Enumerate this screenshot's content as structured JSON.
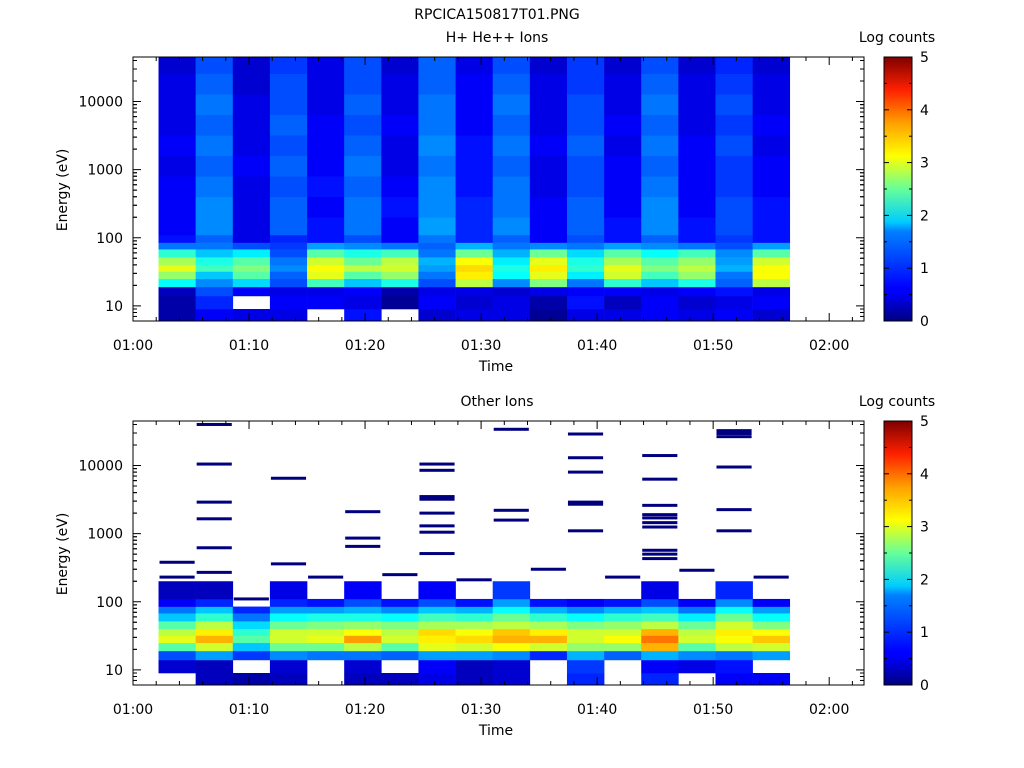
{
  "figure_title": "RPCICA150817T01.PNG",
  "chart_data": [
    {
      "type": "heatmap",
      "title": "H+ He++ Ions",
      "xlabel": "Time",
      "ylabel": "Energy (eV)",
      "colorbar_label": "Log counts",
      "colorbar_ticks": [
        "0",
        "1",
        "2",
        "3",
        "4",
        "5"
      ],
      "colorbar_range": [
        0,
        5
      ],
      "xlim": [
        "01:00",
        "02:03"
      ],
      "xtick_labels": [
        "01:00",
        "01:10",
        "01:20",
        "01:30",
        "01:40",
        "01:50",
        "02:00"
      ],
      "xtick_minutes": [
        0,
        10,
        20,
        30,
        40,
        50,
        60
      ],
      "ylim": [
        6,
        45000
      ],
      "y_scale": "log",
      "ytick_labels": [
        "10",
        "100",
        "1000",
        "10000"
      ],
      "ytick_values": [
        10,
        100,
        1000,
        10000
      ],
      "time_bins_minutes": [
        2.2,
        5.4,
        8.6,
        11.8,
        15.0,
        18.2,
        21.4,
        24.6,
        27.8,
        31.0,
        34.2,
        37.4,
        40.6,
        43.8,
        47.0,
        50.2,
        53.4,
        56.6
      ],
      "energy_bin_edges_ev": [
        6,
        9,
        14,
        19,
        25,
        32,
        40,
        52,
        68,
        85,
        110,
        200,
        400,
        800,
        1600,
        3200,
        6400,
        12800,
        25600,
        45000
      ],
      "log_counts_bottom_to_top": [
        [
          0.2,
          0.6,
          0.5,
          0.5,
          null,
          0.7,
          null,
          0.4,
          0.5,
          0.5,
          0.1,
          0.5,
          0.5,
          0.6,
          0.5,
          0.6,
          0.4
        ],
        [
          0.2,
          0.8,
          null,
          0.6,
          0.6,
          0.5,
          0.1,
          0.6,
          0.4,
          0.5,
          0.2,
          0.7,
          0.3,
          0.6,
          0.4,
          0.5,
          0.6
        ],
        [
          0.3,
          1.0,
          0.6,
          0.5,
          0.5,
          0.6,
          0.2,
          0.5,
          0.5,
          0.4,
          0.5,
          0.6,
          0.6,
          0.5,
          0.6,
          0.7,
          0.5
        ],
        [
          1.9,
          1.3,
          1.7,
          1.0,
          2.2,
          1.6,
          2.0,
          1.0,
          2.8,
          1.3,
          2.5,
          1.2,
          2.1,
          1.6,
          2.0,
          1.1,
          2.8
        ],
        [
          2.6,
          1.6,
          2.3,
          1.1,
          3.0,
          2.3,
          2.6,
          1.2,
          3.2,
          1.9,
          3.0,
          1.8,
          2.9,
          2.2,
          2.6,
          1.2,
          3.1
        ],
        [
          3.0,
          2.2,
          2.5,
          1.3,
          3.1,
          2.8,
          2.9,
          1.4,
          3.3,
          2.0,
          3.2,
          2.1,
          3.0,
          2.5,
          2.8,
          1.5,
          3.1
        ],
        [
          2.7,
          2.0,
          2.3,
          1.2,
          2.9,
          2.4,
          2.8,
          1.5,
          3.1,
          1.8,
          3.0,
          2.0,
          2.7,
          2.3,
          2.6,
          1.4,
          2.9
        ],
        [
          2.1,
          1.6,
          1.8,
          1.0,
          2.3,
          2.0,
          2.2,
          1.2,
          2.4,
          1.5,
          2.4,
          1.7,
          2.3,
          1.9,
          2.2,
          1.3,
          2.3
        ],
        [
          1.2,
          1.2,
          1.0,
          0.9,
          1.4,
          1.3,
          1.2,
          1.1,
          1.5,
          1.2,
          1.3,
          1.2,
          1.4,
          1.3,
          1.2,
          1.0,
          1.4
        ],
        [
          0.7,
          1.1,
          0.5,
          0.8,
          0.7,
          1.0,
          0.6,
          1.2,
          0.8,
          1.1,
          0.6,
          1.0,
          0.7,
          1.1,
          0.7,
          0.9,
          0.7
        ],
        [
          0.6,
          1.3,
          0.5,
          1.1,
          0.7,
          1.2,
          0.6,
          1.4,
          0.8,
          1.3,
          0.6,
          1.1,
          0.7,
          1.3,
          0.7,
          1.0,
          0.7
        ],
        [
          0.6,
          1.3,
          0.5,
          1.1,
          0.6,
          1.2,
          0.7,
          1.3,
          0.8,
          1.2,
          0.6,
          1.1,
          0.6,
          1.3,
          0.6,
          1.0,
          0.7
        ],
        [
          0.6,
          1.2,
          0.5,
          1.0,
          0.7,
          1.1,
          0.6,
          1.3,
          0.7,
          1.2,
          0.5,
          1.0,
          0.6,
          1.2,
          0.6,
          0.9,
          0.6
        ],
        [
          0.5,
          1.1,
          0.6,
          1.1,
          0.6,
          1.2,
          0.5,
          1.2,
          0.7,
          1.1,
          0.5,
          1.0,
          0.6,
          1.1,
          0.6,
          0.9,
          0.6
        ],
        [
          0.6,
          1.2,
          0.5,
          1.0,
          0.6,
          1.1,
          0.5,
          1.3,
          0.7,
          1.2,
          0.6,
          1.1,
          0.5,
          1.2,
          0.6,
          1.0,
          0.5
        ],
        [
          0.5,
          1.1,
          0.5,
          1.1,
          0.6,
          1.0,
          0.6,
          1.2,
          0.6,
          1.1,
          0.5,
          1.0,
          0.6,
          1.1,
          0.5,
          0.9,
          0.6
        ],
        [
          0.5,
          1.2,
          0.5,
          1.0,
          0.5,
          1.1,
          0.5,
          1.2,
          0.6,
          1.2,
          0.5,
          1.0,
          0.5,
          1.2,
          0.5,
          1.0,
          0.5
        ],
        [
          0.5,
          1.1,
          0.4,
          1.0,
          0.5,
          1.0,
          0.5,
          1.1,
          0.6,
          1.1,
          0.5,
          0.9,
          0.5,
          1.1,
          0.5,
          0.9,
          0.5
        ],
        [
          0.4,
          1.0,
          0.4,
          0.9,
          0.5,
          1.0,
          0.4,
          1.1,
          0.5,
          1.0,
          0.4,
          0.9,
          0.4,
          1.0,
          0.4,
          0.8,
          0.4
        ]
      ]
    },
    {
      "type": "heatmap",
      "title": "Other Ions",
      "xlabel": "Time",
      "ylabel": "Energy (eV)",
      "colorbar_label": "Log counts",
      "colorbar_ticks": [
        "0",
        "1",
        "2",
        "3",
        "4",
        "5"
      ],
      "colorbar_range": [
        0,
        5
      ],
      "xlim": [
        "01:00",
        "02:03"
      ],
      "xtick_labels": [
        "01:00",
        "01:10",
        "01:20",
        "01:30",
        "01:40",
        "01:50",
        "02:00"
      ],
      "xtick_minutes": [
        0,
        10,
        20,
        30,
        40,
        50,
        60
      ],
      "ylim": [
        6,
        45000
      ],
      "y_scale": "log",
      "ytick_labels": [
        "10",
        "100",
        "1000",
        "10000"
      ],
      "ytick_values": [
        10,
        100,
        1000,
        10000
      ],
      "time_bins_minutes": [
        2.2,
        5.4,
        8.6,
        11.8,
        15.0,
        18.2,
        21.4,
        24.6,
        27.8,
        31.0,
        34.2,
        37.4,
        40.6,
        43.8,
        47.0,
        50.2,
        53.4,
        56.6
      ],
      "energy_bin_edges_ev": [
        6,
        9,
        14,
        19,
        25,
        32,
        40,
        52,
        68,
        85,
        110,
        200,
        400,
        800,
        1600,
        3200,
        6400,
        12800,
        25600,
        45000
      ],
      "log_counts_bottom_to_top": [
        [
          null,
          0.3,
          0.2,
          0.3,
          null,
          0.3,
          0.3,
          0.5,
          0.3,
          0.4,
          null,
          0.8,
          null,
          0.8,
          null,
          0.6,
          0.6
        ],
        [
          0.4,
          0.3,
          null,
          0.4,
          null,
          0.4,
          null,
          0.6,
          0.3,
          0.4,
          null,
          0.9,
          null,
          0.6,
          0.5,
          0.7,
          null
        ],
        [
          1.0,
          1.4,
          0.9,
          1.3,
          1.2,
          1.2,
          1.1,
          1.4,
          1.4,
          1.3,
          0.8,
          1.5,
          1.1,
          1.5,
          1.3,
          1.2,
          1.4
        ],
        [
          2.3,
          2.9,
          1.6,
          2.4,
          2.4,
          2.8,
          2.3,
          3.0,
          2.9,
          3.1,
          2.9,
          2.6,
          2.6,
          3.5,
          2.3,
          2.8,
          2.9
        ],
        [
          3.0,
          3.5,
          2.3,
          2.9,
          3.0,
          3.6,
          2.9,
          3.2,
          3.3,
          3.5,
          3.5,
          2.9,
          3.1,
          3.8,
          2.9,
          3.1,
          3.4
        ],
        [
          2.8,
          3.2,
          2.1,
          2.9,
          2.9,
          3.1,
          2.8,
          3.3,
          3.1,
          3.4,
          3.2,
          2.9,
          2.9,
          3.5,
          2.8,
          3.2,
          3.1
        ],
        [
          2.3,
          2.8,
          1.7,
          2.4,
          2.5,
          2.6,
          2.5,
          2.7,
          2.7,
          2.8,
          2.7,
          2.5,
          2.6,
          2.8,
          2.4,
          2.9,
          2.5
        ],
        [
          1.6,
          2.1,
          1.2,
          1.9,
          2.0,
          2.0,
          1.9,
          2.2,
          2.1,
          2.4,
          2.1,
          1.9,
          2.1,
          2.2,
          1.8,
          2.4,
          1.9
        ],
        [
          1.2,
          1.6,
          0.8,
          1.4,
          1.4,
          1.5,
          1.3,
          1.6,
          1.5,
          1.9,
          1.5,
          1.3,
          1.5,
          1.6,
          1.2,
          1.9,
          1.4
        ],
        [
          0.6,
          0.8,
          null,
          0.8,
          0.7,
          1.0,
          0.7,
          1.0,
          0.7,
          1.4,
          0.7,
          0.6,
          0.7,
          1.0,
          0.6,
          1.3,
          0.6
        ],
        [
          0.3,
          0.3,
          null,
          0.5,
          null,
          0.6,
          null,
          0.6,
          null,
          0.9,
          null,
          null,
          null,
          0.5,
          null,
          0.8,
          null
        ],
        [
          null,
          null,
          null,
          null,
          null,
          null,
          null,
          null,
          null,
          null,
          null,
          null,
          null,
          null,
          null,
          null,
          null
        ],
        [
          null,
          null,
          null,
          null,
          null,
          null,
          null,
          null,
          null,
          null,
          null,
          null,
          null,
          null,
          null,
          null,
          null
        ],
        [
          null,
          null,
          null,
          null,
          null,
          null,
          null,
          null,
          null,
          null,
          null,
          null,
          null,
          null,
          null,
          null,
          null
        ],
        [
          null,
          null,
          null,
          null,
          null,
          null,
          null,
          null,
          null,
          null,
          null,
          null,
          null,
          null,
          null,
          null,
          null
        ],
        [
          null,
          null,
          null,
          null,
          null,
          null,
          null,
          null,
          null,
          null,
          null,
          null,
          null,
          null,
          null,
          null,
          null
        ],
        [
          null,
          null,
          null,
          null,
          null,
          null,
          null,
          null,
          null,
          null,
          null,
          null,
          null,
          null,
          null,
          null,
          null
        ],
        [
          null,
          null,
          null,
          null,
          null,
          null,
          null,
          null,
          null,
          null,
          null,
          null,
          null,
          null,
          null,
          null,
          null
        ],
        [
          null,
          null,
          null,
          null,
          null,
          null,
          null,
          null,
          null,
          null,
          null,
          null,
          null,
          null,
          null,
          null,
          null
        ]
      ],
      "sparse_high_energy_lines": [
        {
          "bin": 0,
          "energy_ev": [
            230,
            380
          ]
        },
        {
          "bin": 1,
          "energy_ev": [
            270,
            620,
            1650,
            2900,
            10500,
            40000
          ]
        },
        {
          "bin": 2,
          "energy_ev": [
            110
          ]
        },
        {
          "bin": 3,
          "energy_ev": [
            360,
            6500
          ]
        },
        {
          "bin": 4,
          "energy_ev": [
            230
          ]
        },
        {
          "bin": 5,
          "energy_ev": [
            650,
            860,
            2100
          ]
        },
        {
          "bin": 6,
          "energy_ev": [
            250
          ]
        },
        {
          "bin": 7,
          "energy_ev": [
            510,
            1050,
            1300,
            2000,
            3200,
            3500,
            8500,
            10500
          ]
        },
        {
          "bin": 8,
          "energy_ev": [
            210
          ]
        },
        {
          "bin": 9,
          "energy_ev": [
            1580,
            2200,
            34000
          ]
        },
        {
          "bin": 10,
          "energy_ev": [
            300
          ]
        },
        {
          "bin": 11,
          "energy_ev": [
            1100,
            2700,
            2900,
            8000,
            13000,
            29000
          ]
        },
        {
          "bin": 12,
          "energy_ev": [
            230
          ]
        },
        {
          "bin": 13,
          "energy_ev": [
            430,
            500,
            570,
            1250,
            1450,
            1700,
            1900,
            2600,
            6300,
            14000
          ]
        },
        {
          "bin": 14,
          "energy_ev": [
            290
          ]
        },
        {
          "bin": 15,
          "energy_ev": [
            1100,
            2250,
            9500,
            26500,
            29500,
            32500
          ]
        },
        {
          "bin": 16,
          "energy_ev": [
            230
          ]
        }
      ]
    }
  ]
}
